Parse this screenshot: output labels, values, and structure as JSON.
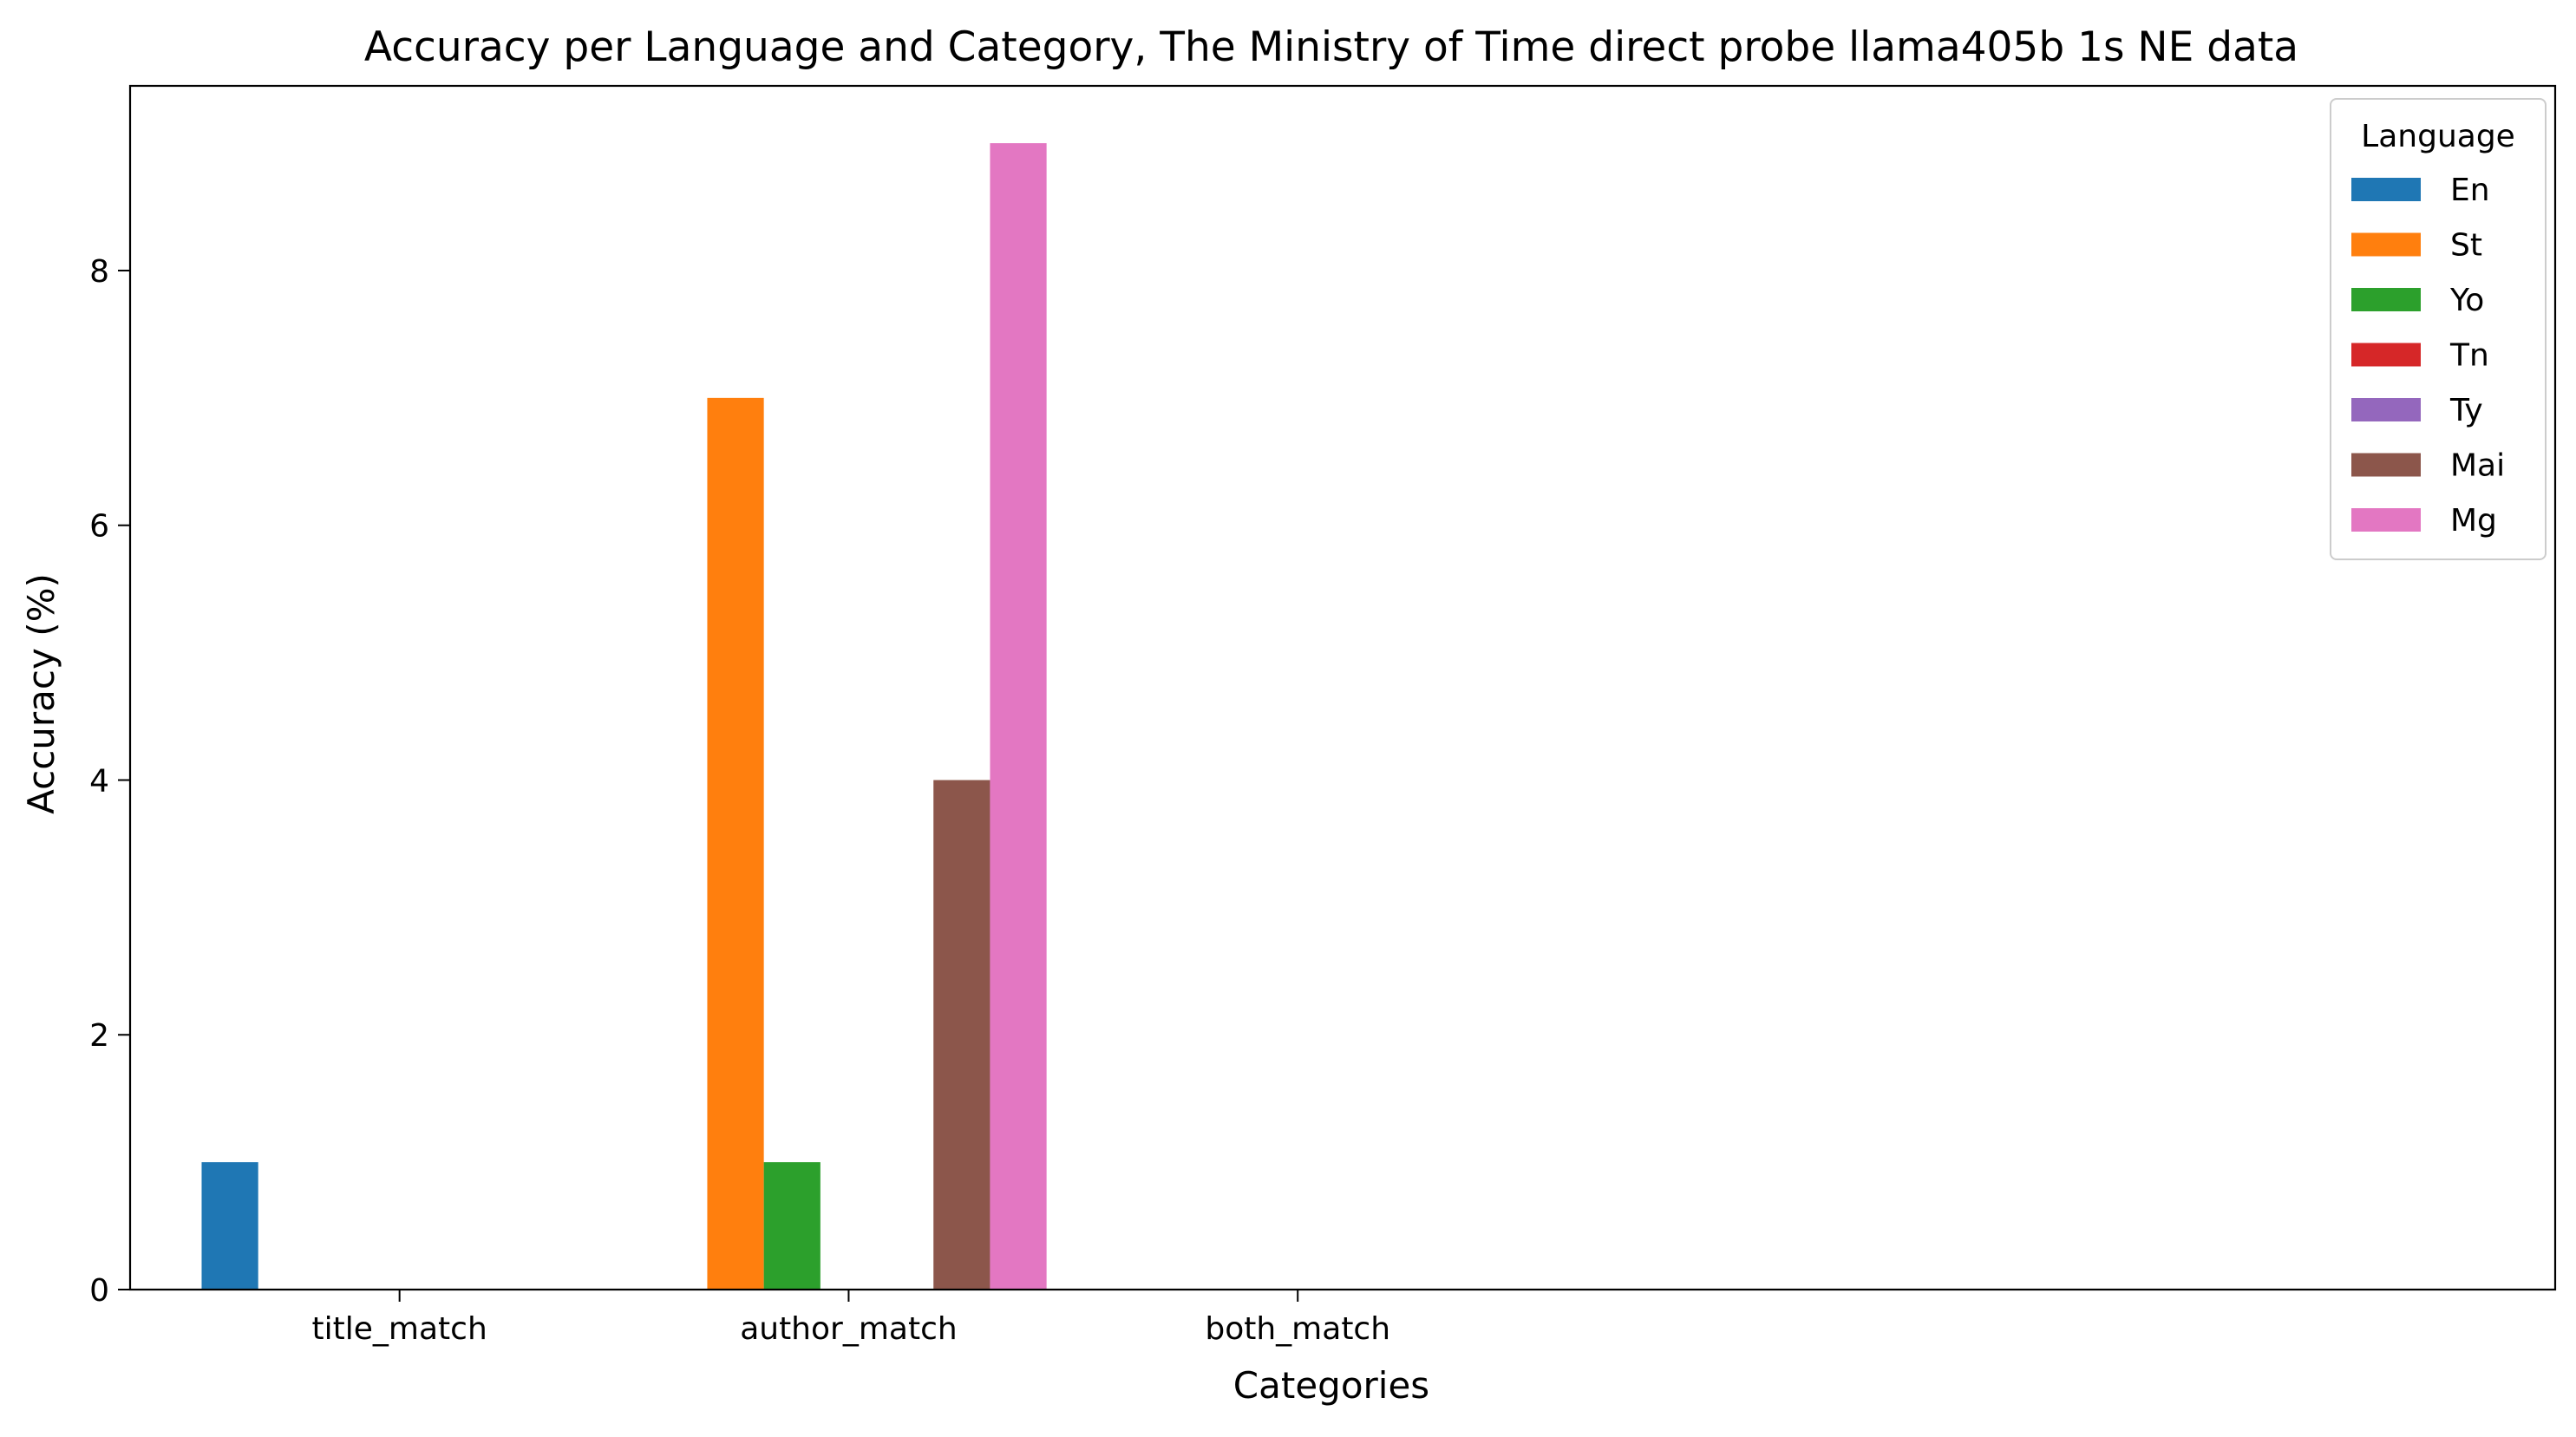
{
  "chart_data": {
    "type": "bar",
    "title": "Accuracy per Language and Category, The Ministry of Time direct probe llama405b 1s NE data",
    "xlabel": "Categories",
    "ylabel": "Accuracy (%)",
    "categories": [
      "title_match",
      "author_match",
      "both_match"
    ],
    "ylim": [
      0,
      9.45
    ],
    "yticks": [
      0,
      2,
      4,
      6,
      8
    ],
    "grid": false,
    "legend": {
      "title": "Language",
      "placement": "top-right"
    },
    "series": [
      {
        "name": "En",
        "color": "#1f77b4",
        "values": [
          1,
          0,
          0
        ]
      },
      {
        "name": "St",
        "color": "#ff7f0e",
        "values": [
          0,
          7,
          0
        ]
      },
      {
        "name": "Yo",
        "color": "#2ca02c",
        "values": [
          0,
          1,
          0
        ]
      },
      {
        "name": "Tn",
        "color": "#d62728",
        "values": [
          0,
          0,
          0
        ]
      },
      {
        "name": "Ty",
        "color": "#9467bd",
        "values": [
          0,
          0,
          0
        ]
      },
      {
        "name": "Mai",
        "color": "#8c564b",
        "values": [
          0,
          4,
          0
        ]
      },
      {
        "name": "Mg",
        "color": "#e377c2",
        "values": [
          0,
          9,
          0
        ]
      }
    ]
  }
}
